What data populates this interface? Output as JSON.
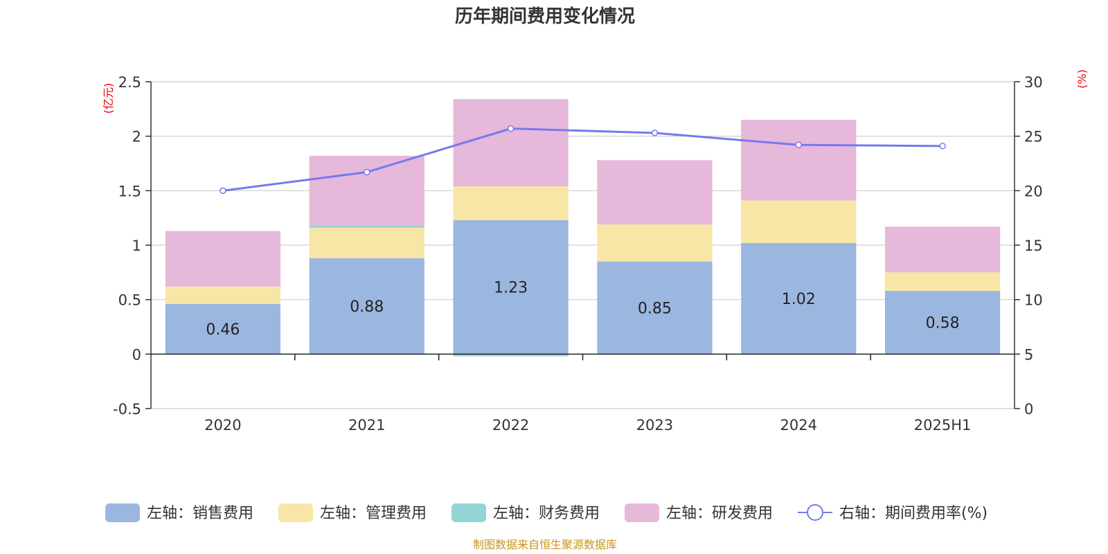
{
  "chart_data": {
    "type": "bar",
    "title": "历年期间费用变化情况",
    "categories": [
      "2020",
      "2021",
      "2022",
      "2023",
      "2024",
      "2025H1"
    ],
    "left_axis": {
      "unit": "(亿元)",
      "ylim": [
        -0.5,
        2.5
      ],
      "ticks": [
        "-0.5",
        "0",
        "0.5",
        "1",
        "1.5",
        "2",
        "2.5"
      ]
    },
    "right_axis": {
      "unit": "(%)",
      "ylim": [
        0,
        30
      ],
      "ticks": [
        "0",
        "5",
        "10",
        "15",
        "20",
        "25",
        "30"
      ]
    },
    "stacked": true,
    "series": [
      {
        "name": "左轴：销售费用",
        "axis": "left",
        "type": "bar",
        "color": "#9bb7e0",
        "values": [
          0.46,
          0.88,
          1.23,
          0.85,
          1.02,
          0.58
        ],
        "data_labels": [
          "0.46",
          "0.88",
          "1.23",
          "0.85",
          "1.02",
          "0.58"
        ]
      },
      {
        "name": "左轴：管理费用",
        "axis": "left",
        "type": "bar",
        "color": "#f8e6a6",
        "values": [
          0.16,
          0.28,
          0.31,
          0.34,
          0.39,
          0.17
        ]
      },
      {
        "name": "左轴：财务费用",
        "axis": "left",
        "type": "bar",
        "color": "#93d4d4",
        "values": [
          0.0,
          0.02,
          -0.02,
          0.0,
          0.0,
          0.0
        ]
      },
      {
        "name": "左轴：研发费用",
        "axis": "left",
        "type": "bar",
        "color": "#e6b8d9",
        "values": [
          0.51,
          0.64,
          0.8,
          0.59,
          0.74,
          0.42
        ]
      },
      {
        "name": "右轴：期间费用率(%)",
        "axis": "right",
        "type": "line",
        "color": "#7579ef",
        "values": [
          20.0,
          21.7,
          25.7,
          25.3,
          24.2,
          24.1
        ]
      }
    ],
    "grid": true,
    "legend_position": "bottom"
  },
  "source_text": "制图数据来自恒生聚源数据库"
}
